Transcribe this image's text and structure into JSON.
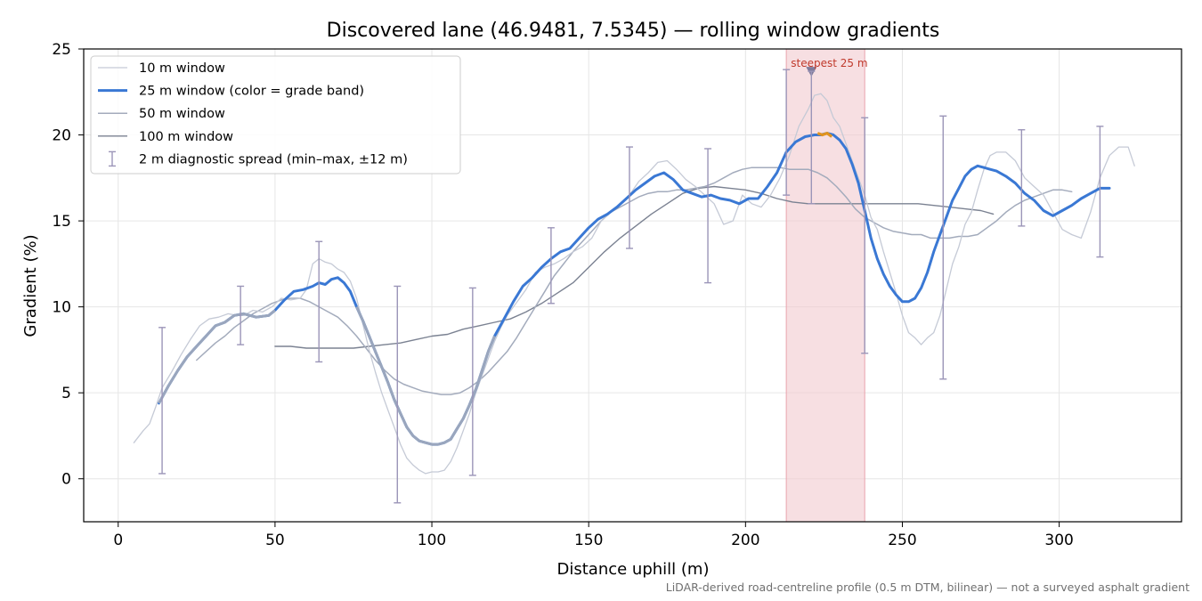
{
  "chart_data": {
    "type": "line",
    "title": "Discovered lane (46.9481, 7.5345) — rolling window gradients",
    "xlabel": "Distance uphill (m)",
    "ylabel": "Gradient (%)",
    "xlim": [
      -11,
      339
    ],
    "ylim": [
      -2.5,
      25
    ],
    "xticks": [
      0,
      50,
      100,
      150,
      200,
      250,
      300
    ],
    "yticks": [
      0,
      5,
      10,
      15,
      20,
      25
    ],
    "grid": true,
    "legend_position": "top-left",
    "footnote": "LiDAR-derived road-centreline profile (0.5 m DTM, bilinear) — not a surveyed asphalt gradient",
    "highlight": {
      "label": "steepest 25 m",
      "x_range": [
        213,
        238
      ],
      "marker_x": 221,
      "marker_y": 23.7,
      "color": "#f2c9cf"
    },
    "series": [
      {
        "name": "10 m window",
        "color": "#c5cad6",
        "x": [
          5,
          8,
          10,
          12,
          14,
          17,
          20,
          23,
          26,
          29,
          32,
          35,
          38,
          40,
          43,
          46,
          49,
          52,
          55,
          58,
          60,
          62,
          64,
          66,
          68,
          70,
          72,
          74,
          76,
          78,
          80,
          82,
          84,
          86,
          88,
          90,
          92,
          94,
          96,
          98,
          100,
          102,
          104,
          106,
          108,
          110,
          112,
          114,
          116,
          118,
          120,
          122,
          124,
          126,
          128,
          130,
          133,
          136,
          139,
          142,
          145,
          148,
          151,
          154,
          157,
          160,
          163,
          166,
          169,
          172,
          175,
          178,
          181,
          184,
          187,
          190,
          193,
          196,
          199,
          202,
          205,
          208,
          211,
          214,
          217,
          220,
          222,
          224,
          226,
          228,
          230,
          232,
          234,
          236,
          238,
          240,
          242,
          244,
          246,
          248,
          250,
          252,
          254,
          256,
          258,
          260,
          262,
          264,
          266,
          268,
          270,
          272,
          274,
          276,
          278,
          280,
          283,
          286,
          289,
          292,
          295,
          298,
          301,
          304,
          307,
          310,
          313,
          316,
          319,
          322,
          324
        ],
        "y": [
          2.1,
          2.8,
          3.2,
          4.2,
          5.3,
          6.2,
          7.2,
          8.1,
          8.9,
          9.3,
          9.4,
          9.6,
          9.5,
          9.5,
          9.8,
          9.7,
          10.0,
          10.5,
          10.4,
          10.5,
          11.0,
          12.5,
          12.8,
          12.6,
          12.5,
          12.2,
          12.0,
          11.5,
          10.5,
          9.0,
          7.5,
          6.2,
          5.0,
          4.0,
          3.0,
          2.0,
          1.2,
          0.8,
          0.5,
          0.3,
          0.4,
          0.4,
          0.5,
          1.0,
          1.8,
          2.8,
          3.8,
          5.0,
          6.0,
          7.0,
          8.0,
          8.8,
          9.5,
          10.0,
          10.5,
          11.0,
          12.0,
          12.3,
          12.5,
          12.8,
          13.2,
          13.5,
          14.0,
          15.0,
          15.5,
          16.0,
          16.5,
          17.3,
          17.8,
          18.4,
          18.5,
          18.0,
          17.4,
          17.0,
          16.5,
          16.0,
          14.8,
          15.0,
          16.5,
          16.0,
          15.8,
          16.5,
          17.5,
          18.8,
          20.5,
          21.5,
          22.3,
          22.4,
          22.0,
          21.0,
          20.5,
          19.5,
          18.5,
          17.5,
          16.5,
          15.2,
          14.5,
          13.2,
          12.0,
          10.8,
          9.5,
          8.5,
          8.2,
          7.8,
          8.2,
          8.5,
          9.5,
          11.0,
          12.5,
          13.5,
          14.8,
          15.5,
          16.8,
          18.0,
          18.8,
          19.0,
          19.0,
          18.5,
          17.5,
          17.0,
          16.5,
          15.5,
          14.5,
          14.2,
          14.0,
          15.5,
          17.5,
          18.8,
          19.3,
          19.3,
          18.2
        ]
      },
      {
        "name": "25 m window (color = grade band)",
        "color": "#3a78d4",
        "x": [
          13,
          16,
          19,
          22,
          25,
          28,
          31,
          34,
          37,
          40,
          44,
          48,
          50,
          53,
          56,
          59,
          62,
          64,
          66,
          68,
          70,
          72,
          74,
          76,
          78,
          80,
          82,
          84,
          86,
          88,
          90,
          92,
          94,
          96,
          98,
          100,
          102,
          104,
          106,
          108,
          110,
          112,
          114,
          116,
          118,
          120,
          123,
          126,
          129,
          132,
          135,
          138,
          141,
          144,
          147,
          150,
          153,
          156,
          159,
          162,
          165,
          168,
          171,
          174,
          177,
          180,
          183,
          186,
          189,
          192,
          195,
          198,
          201,
          204,
          207,
          210,
          213,
          216,
          219,
          222,
          224,
          226,
          228,
          230,
          232,
          234,
          236,
          238,
          240,
          242,
          244,
          246,
          248,
          250,
          252,
          254,
          256,
          258,
          260,
          262,
          264,
          266,
          268,
          270,
          272,
          274,
          276,
          278,
          280,
          283,
          286,
          289,
          292,
          295,
          298,
          301,
          304,
          307,
          310,
          313,
          316
        ],
        "y": [
          4.4,
          5.4,
          6.3,
          7.1,
          7.7,
          8.3,
          8.9,
          9.1,
          9.5,
          9.6,
          9.4,
          9.5,
          9.8,
          10.4,
          10.9,
          11.0,
          11.2,
          11.4,
          11.3,
          11.6,
          11.7,
          11.4,
          10.9,
          10.0,
          9.2,
          8.3,
          7.4,
          6.5,
          5.6,
          4.6,
          3.8,
          3.0,
          2.5,
          2.2,
          2.1,
          2.0,
          2.0,
          2.1,
          2.3,
          2.9,
          3.5,
          4.3,
          5.2,
          6.3,
          7.4,
          8.3,
          9.3,
          10.3,
          11.2,
          11.7,
          12.3,
          12.8,
          13.2,
          13.4,
          14.0,
          14.6,
          15.1,
          15.4,
          15.8,
          16.3,
          16.8,
          17.2,
          17.6,
          17.8,
          17.4,
          16.8,
          16.6,
          16.4,
          16.5,
          16.3,
          16.2,
          16.0,
          16.3,
          16.3,
          17.0,
          17.8,
          19.0,
          19.6,
          19.9,
          20.0,
          20.0,
          20.1,
          20.0,
          19.7,
          19.2,
          18.3,
          17.2,
          15.6,
          14.0,
          12.8,
          11.9,
          11.2,
          10.7,
          10.3,
          10.3,
          10.5,
          11.1,
          12.0,
          13.2,
          14.2,
          15.2,
          16.2,
          16.9,
          17.6,
          18.0,
          18.2,
          18.1,
          18.0,
          17.9,
          17.6,
          17.2,
          16.6,
          16.2,
          15.6,
          15.3,
          15.6,
          15.9,
          16.3,
          16.6,
          16.9,
          16.9
        ]
      },
      {
        "name": "50 m window",
        "color": "#a3abbc",
        "x": [
          25,
          28,
          31,
          34,
          37,
          40,
          43,
          46,
          49,
          52,
          55,
          58,
          61,
          64,
          67,
          70,
          73,
          76,
          79,
          82,
          85,
          88,
          91,
          94,
          97,
          100,
          103,
          106,
          109,
          112,
          115,
          118,
          121,
          124,
          127,
          130,
          133,
          136,
          139,
          142,
          145,
          148,
          151,
          154,
          157,
          160,
          163,
          166,
          169,
          172,
          175,
          178,
          181,
          184,
          187,
          190,
          193,
          196,
          199,
          202,
          205,
          208,
          211,
          214,
          217,
          220,
          223,
          226,
          229,
          232,
          235,
          238,
          241,
          244,
          247,
          250,
          253,
          256,
          259,
          262,
          265,
          268,
          271,
          274,
          277,
          280,
          283,
          286,
          289,
          292,
          295,
          298,
          301,
          304
        ],
        "y": [
          6.9,
          7.4,
          7.9,
          8.3,
          8.8,
          9.2,
          9.6,
          9.9,
          10.2,
          10.4,
          10.5,
          10.5,
          10.3,
          10.0,
          9.7,
          9.4,
          8.9,
          8.3,
          7.6,
          6.9,
          6.3,
          5.8,
          5.5,
          5.3,
          5.1,
          5.0,
          4.9,
          4.9,
          5.0,
          5.3,
          5.7,
          6.2,
          6.8,
          7.4,
          8.2,
          9.1,
          10.0,
          10.9,
          11.8,
          12.5,
          13.2,
          13.8,
          14.4,
          15.0,
          15.5,
          15.8,
          16.1,
          16.4,
          16.6,
          16.7,
          16.7,
          16.8,
          16.8,
          16.9,
          17.0,
          17.2,
          17.5,
          17.8,
          18.0,
          18.1,
          18.1,
          18.1,
          18.1,
          18.0,
          18.0,
          18.0,
          17.8,
          17.5,
          17.0,
          16.4,
          15.7,
          15.2,
          14.9,
          14.6,
          14.4,
          14.3,
          14.2,
          14.2,
          14.0,
          14.0,
          14.0,
          14.1,
          14.1,
          14.2,
          14.6,
          15.0,
          15.5,
          15.9,
          16.2,
          16.4,
          16.6,
          16.8,
          16.8,
          16.7
        ]
      },
      {
        "name": "100 m window",
        "color": "#7b8292",
        "x": [
          50,
          55,
          60,
          65,
          70,
          75,
          80,
          85,
          90,
          95,
          100,
          105,
          110,
          115,
          120,
          125,
          130,
          135,
          140,
          145,
          150,
          155,
          160,
          165,
          170,
          175,
          180,
          185,
          190,
          195,
          200,
          205,
          210,
          215,
          220,
          225,
          230,
          235,
          240,
          245,
          250,
          255,
          260,
          265,
          270,
          275,
          279
        ],
        "y": [
          7.7,
          7.7,
          7.6,
          7.6,
          7.6,
          7.6,
          7.7,
          7.8,
          7.9,
          8.1,
          8.3,
          8.4,
          8.7,
          8.9,
          9.1,
          9.3,
          9.7,
          10.2,
          10.8,
          11.4,
          12.3,
          13.2,
          14.0,
          14.7,
          15.4,
          16.0,
          16.6,
          16.9,
          17.0,
          16.9,
          16.8,
          16.6,
          16.3,
          16.1,
          16.0,
          16.0,
          16.0,
          16.0,
          16.0,
          16.0,
          16.0,
          16.0,
          15.9,
          15.8,
          15.7,
          15.6,
          15.4
        ]
      },
      {
        "name": "2 m diagnostic spread (min–max, ±12 m)",
        "color": "#9b95b8",
        "x": [
          14,
          39,
          64,
          89,
          113,
          138,
          163,
          188,
          213,
          221,
          238,
          263,
          288,
          313
        ],
        "low": [
          0.3,
          7.8,
          6.8,
          -1.4,
          0.2,
          10.2,
          13.4,
          11.4,
          16.5,
          16.0,
          7.3,
          5.8,
          14.7,
          12.9
        ],
        "high": [
          8.8,
          11.2,
          13.8,
          11.2,
          11.1,
          14.6,
          19.3,
          19.2,
          23.8,
          23.7,
          21.0,
          21.1,
          20.3,
          20.5
        ]
      }
    ],
    "orange_segment": {
      "color": "#e0931f",
      "x": [
        223,
        224.5,
        226,
        227.5
      ],
      "y": [
        20.1,
        20.0,
        20.1,
        19.9
      ]
    }
  }
}
